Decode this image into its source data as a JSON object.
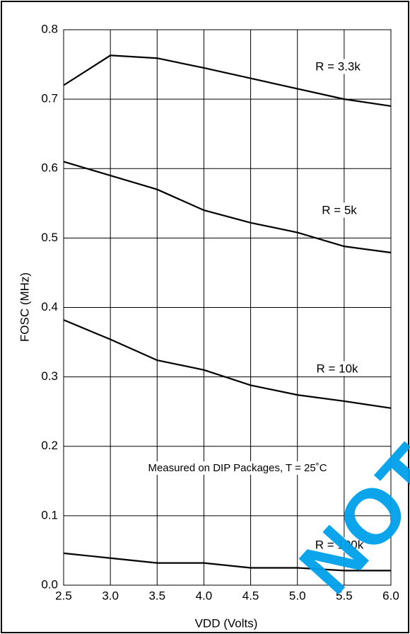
{
  "chart_data": {
    "type": "line",
    "x": [
      2.5,
      3.0,
      3.5,
      4.0,
      4.5,
      5.0,
      5.5,
      6.0
    ],
    "xlim": [
      2.5,
      6.0
    ],
    "xticks": [
      2.5,
      {
        "value": 3.0,
        "label": "3.0"
      },
      3.5,
      {
        "value": 4.0,
        "label": "4.0"
      },
      4.5,
      {
        "value": 5.0,
        "label": "5.0"
      },
      5.5,
      {
        "value": 6.0,
        "label": "6.0"
      }
    ],
    "ylim": [
      0,
      0.8
    ],
    "yticks": [
      {
        "value": 0,
        "label": "0.0"
      },
      0.1,
      0.2,
      0.3,
      0.4,
      0.5,
      0.6,
      0.7,
      0.8
    ],
    "x_label": "VDD (Volts)",
    "y_label": "FOSC (MHz)",
    "grid": true,
    "annotation": "Measured on DIP Packages, T = 25˚C",
    "watermark": "NOT",
    "series": [
      {
        "name": "R = 3.3k",
        "color": "#000000",
        "values": [
          0.72,
          0.763,
          0.759,
          0.745,
          0.73,
          0.715,
          0.7,
          0.69
        ]
      },
      {
        "name": "R = 5k",
        "color": "#000000",
        "values": [
          0.61,
          0.59,
          0.57,
          0.54,
          0.522,
          0.508,
          0.488,
          0.479
        ]
      },
      {
        "name": "R = 10k",
        "color": "#000000",
        "values": [
          0.382,
          0.354,
          0.324,
          0.31,
          0.288,
          0.274,
          0.265,
          0.255
        ]
      },
      {
        "name": "R = 100k",
        "color": "#000000",
        "values": [
          0.046,
          0.039,
          0.032,
          0.032,
          0.025,
          0.025,
          0.021,
          0.021
        ]
      }
    ]
  }
}
